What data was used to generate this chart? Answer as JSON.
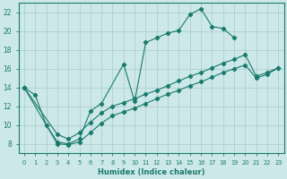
{
  "xlabel": "Humidex (Indice chaleur)",
  "bg_color": "#cce8e8",
  "grid_color": "#aacccc",
  "line_color": "#1a7a6e",
  "xlim": [
    -0.5,
    23.5
  ],
  "ylim": [
    7,
    23
  ],
  "xticks": [
    0,
    1,
    2,
    3,
    4,
    5,
    6,
    7,
    8,
    9,
    10,
    11,
    12,
    13,
    14,
    15,
    16,
    17,
    18,
    19,
    20,
    21,
    22,
    23
  ],
  "yticks": [
    8,
    10,
    12,
    14,
    16,
    18,
    20,
    22
  ],
  "line1": {
    "x": [
      0,
      1,
      2,
      3,
      4,
      5,
      6,
      7,
      9,
      10,
      11,
      12,
      13,
      14,
      15,
      16,
      17,
      18,
      19
    ],
    "y": [
      14.0,
      13.2,
      10.0,
      8.2,
      8.0,
      8.5,
      11.5,
      12.3,
      16.5,
      12.5,
      18.8,
      19.3,
      19.8,
      20.1,
      21.8,
      22.4,
      20.5,
      20.3,
      19.3
    ]
  },
  "line2": {
    "x": [
      0,
      3,
      4,
      5,
      6,
      7,
      8,
      9,
      10,
      11,
      12,
      13,
      14,
      15,
      16,
      17,
      18,
      19,
      20,
      21,
      22,
      23
    ],
    "y": [
      14.0,
      9.0,
      8.5,
      9.2,
      10.3,
      11.3,
      12.0,
      12.4,
      12.8,
      13.3,
      13.7,
      14.2,
      14.7,
      15.2,
      15.6,
      16.1,
      16.6,
      17.0,
      17.5,
      15.2,
      15.6,
      16.1
    ]
  },
  "line3": {
    "x": [
      0,
      3,
      4,
      5,
      6,
      7,
      8,
      9,
      10,
      11,
      12,
      13,
      14,
      15,
      16,
      17,
      18,
      19,
      20,
      21,
      22,
      23
    ],
    "y": [
      14.0,
      8.0,
      7.9,
      8.2,
      9.2,
      10.2,
      11.0,
      11.4,
      11.8,
      12.3,
      12.8,
      13.3,
      13.7,
      14.2,
      14.6,
      15.1,
      15.6,
      16.0,
      16.4,
      15.0,
      15.4,
      16.1
    ]
  }
}
